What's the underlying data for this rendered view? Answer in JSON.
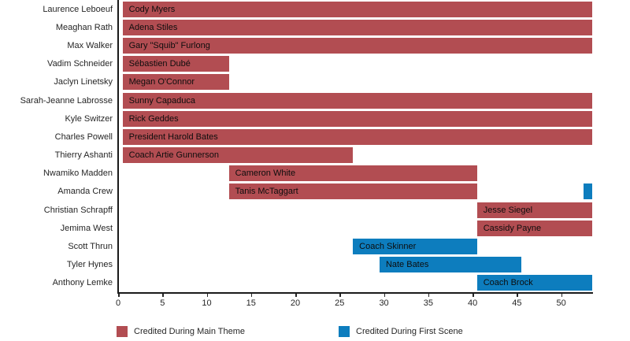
{
  "chart_data": {
    "type": "bar",
    "subtype": "horizontal-gantt",
    "title": "",
    "xlabel": "",
    "ylabel": "",
    "grid": false,
    "legend_position": "bottom",
    "xlim": [
      0,
      53.5
    ],
    "x_ticks": [
      0,
      5,
      10,
      15,
      20,
      25,
      30,
      35,
      40,
      45,
      50
    ],
    "groups": {
      "main_theme": {
        "label": "Credited During Main Theme",
        "color": "#b24d52"
      },
      "first_scene": {
        "label": "Credited During First Scene",
        "color": "#0d7dbe"
      }
    },
    "categories": [
      "Laurence Leboeuf",
      "Meaghan Rath",
      "Max Walker",
      "Vadim Schneider",
      "Jaclyn Linetsky",
      "Sarah-Jeanne Labrosse",
      "Kyle Switzer",
      "Charles Powell",
      "Thierry Ashanti",
      "Nwamiko Madden",
      "Amanda Crew",
      "Christian Schrapff",
      "Jemima West",
      "Scott Thrun",
      "Tyler Hynes",
      "Anthony Lemke"
    ],
    "rows": [
      {
        "actor": "Laurence Leboeuf",
        "segments": [
          {
            "character": "Cody Myers",
            "start": 1,
            "end": 53,
            "group": "main_theme"
          }
        ]
      },
      {
        "actor": "Meaghan Rath",
        "segments": [
          {
            "character": "Adena Stiles",
            "start": 1,
            "end": 53,
            "group": "main_theme"
          }
        ]
      },
      {
        "actor": "Max Walker",
        "segments": [
          {
            "character": "Gary \"Squib\" Furlong",
            "start": 1,
            "end": 53,
            "group": "main_theme"
          }
        ]
      },
      {
        "actor": "Vadim Schneider",
        "segments": [
          {
            "character": "Sébastien Dubé",
            "start": 1,
            "end": 12,
            "group": "main_theme"
          }
        ]
      },
      {
        "actor": "Jaclyn Linetsky",
        "segments": [
          {
            "character": "Megan O'Connor",
            "start": 1,
            "end": 12,
            "group": "main_theme"
          }
        ]
      },
      {
        "actor": "Sarah-Jeanne Labrosse",
        "segments": [
          {
            "character": "Sunny Capaduca",
            "start": 1,
            "end": 53,
            "group": "main_theme"
          }
        ]
      },
      {
        "actor": "Kyle Switzer",
        "segments": [
          {
            "character": "Rick Geddes",
            "start": 1,
            "end": 53,
            "group": "main_theme"
          }
        ]
      },
      {
        "actor": "Charles Powell",
        "segments": [
          {
            "character": "President Harold Bates",
            "start": 1,
            "end": 53,
            "group": "main_theme"
          }
        ]
      },
      {
        "actor": "Thierry Ashanti",
        "segments": [
          {
            "character": "Coach Artie Gunnerson",
            "start": 1,
            "end": 26,
            "group": "main_theme"
          }
        ]
      },
      {
        "actor": "Nwamiko Madden",
        "segments": [
          {
            "character": "Cameron White",
            "start": 13,
            "end": 40,
            "group": "main_theme"
          }
        ]
      },
      {
        "actor": "Amanda Crew",
        "segments": [
          {
            "character": "Tanis McTaggart",
            "start": 13,
            "end": 40,
            "group": "main_theme"
          },
          {
            "character": "",
            "start": 53,
            "end": 53,
            "group": "first_scene"
          }
        ]
      },
      {
        "actor": "Christian Schrapff",
        "segments": [
          {
            "character": "Jesse Siegel",
            "start": 41,
            "end": 53,
            "group": "main_theme"
          }
        ]
      },
      {
        "actor": "Jemima West",
        "segments": [
          {
            "character": "Cassidy Payne",
            "start": 41,
            "end": 53,
            "group": "main_theme"
          }
        ]
      },
      {
        "actor": "Scott Thrun",
        "segments": [
          {
            "character": "Coach Skinner",
            "start": 27,
            "end": 40,
            "group": "first_scene"
          }
        ]
      },
      {
        "actor": "Tyler Hynes",
        "segments": [
          {
            "character": "Nate Bates",
            "start": 30,
            "end": 45,
            "group": "first_scene"
          }
        ]
      },
      {
        "actor": "Anthony Lemke",
        "segments": [
          {
            "character": "Coach Brock",
            "start": 41,
            "end": 53,
            "group": "first_scene"
          }
        ]
      }
    ]
  }
}
